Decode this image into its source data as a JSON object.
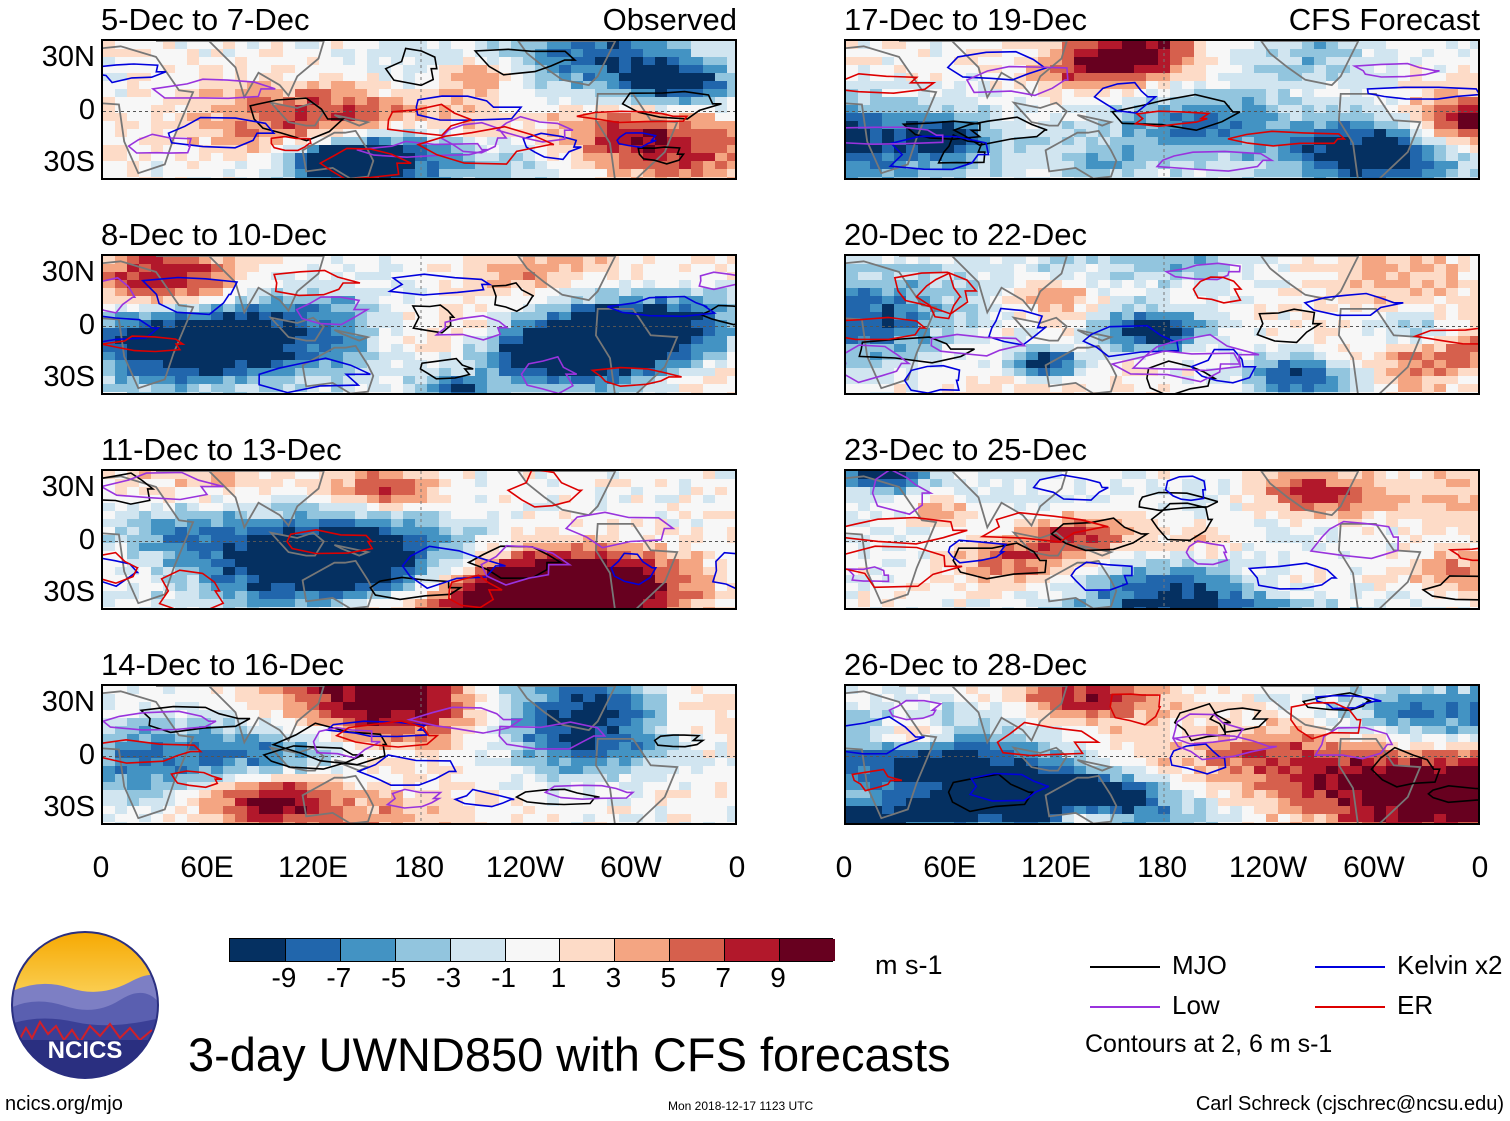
{
  "figure": {
    "title": "3-day UWND850 with CFS forecasts",
    "site": "ncics.org/mjo",
    "timestamp": "Mon 2018-12-17 1123 UTC",
    "author": "Carl Schreck (cjschrec@ncsu.edu)",
    "logo_text": "NCICS",
    "observed_label": "Observed",
    "forecast_label": "CFS Forecast",
    "contour_note": "Contours at 2, 6 m s-1"
  },
  "chart_data": {
    "type": "heatmap",
    "variable": "850-hPa zonal wind anomaly",
    "units": "m s-1",
    "panels": [
      {
        "period": "5-Dec to 7-Dec",
        "kind": "observed",
        "seed": 11
      },
      {
        "period": "8-Dec to 10-Dec",
        "kind": "observed",
        "seed": 23
      },
      {
        "period": "11-Dec to 13-Dec",
        "kind": "observed",
        "seed": 37
      },
      {
        "period": "14-Dec to 16-Dec",
        "kind": "observed",
        "seed": 41
      },
      {
        "period": "17-Dec to 19-Dec",
        "kind": "forecast",
        "seed": 53
      },
      {
        "period": "20-Dec to 22-Dec",
        "kind": "forecast",
        "seed": 67
      },
      {
        "period": "23-Dec to 25-Dec",
        "kind": "forecast",
        "seed": 71
      },
      {
        "period": "26-Dec to 28-Dec",
        "kind": "forecast",
        "seed": 89
      }
    ],
    "y_ticks": [
      "30N",
      "0",
      "30S"
    ],
    "y_values": [
      30,
      0,
      -30
    ],
    "ylim": [
      -40,
      40
    ],
    "x_ticks": [
      "0",
      "60E",
      "120E",
      "180",
      "120W",
      "60W",
      "0"
    ],
    "x_values": [
      0,
      60,
      120,
      180,
      240,
      300,
      360
    ],
    "xlim": [
      0,
      360
    ],
    "colorbar": {
      "levels": [
        -11,
        -9,
        -7,
        -5,
        -3,
        -1,
        1,
        3,
        5,
        7,
        9,
        11
      ],
      "labels": [
        "-9",
        "-7",
        "-5",
        "-3",
        "-1",
        "1",
        "3",
        "5",
        "7",
        "9"
      ],
      "colors": [
        "#053061",
        "#2166ac",
        "#4393c3",
        "#92c5de",
        "#d1e5f0",
        "#f7f7f7",
        "#fddbc7",
        "#f4a582",
        "#d6604d",
        "#b2182b",
        "#67001f"
      ],
      "units": "m s-1"
    },
    "legend": [
      {
        "label": "MJO",
        "color": "#000000"
      },
      {
        "label": "Kelvin x2",
        "color": "#0000dd"
      },
      {
        "label": "Low",
        "color": "#9933dd"
      },
      {
        "label": "ER",
        "color": "#dd0000"
      }
    ],
    "contour_levels": [
      2,
      6
    ]
  }
}
